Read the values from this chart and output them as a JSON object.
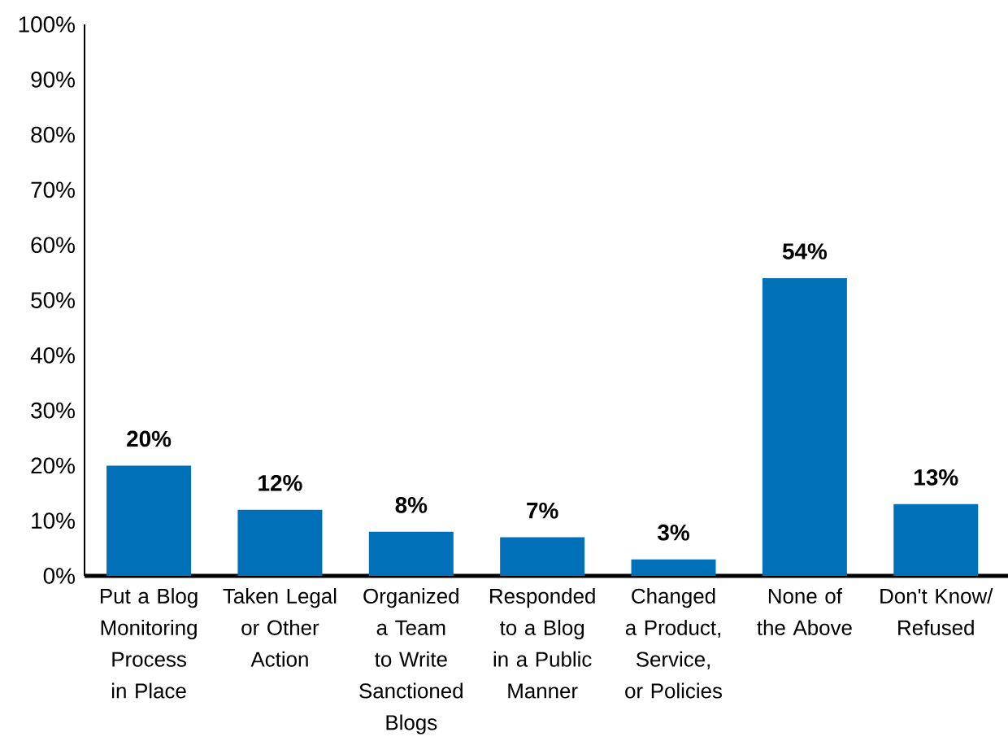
{
  "chart_data": {
    "type": "bar",
    "categories": [
      "Put a Blog Monitoring Process in Place",
      "Taken Legal or Other Action",
      "Organized a Team to Write Sanctioned Blogs",
      "Responded to a Blog in a Public Manner",
      "Changed a Product, Service, or Policies",
      "None of the Above",
      "Don't Know/ Refused"
    ],
    "values": [
      20,
      12,
      8,
      7,
      3,
      54,
      13
    ],
    "value_labels": [
      "20%",
      "12%",
      "8%",
      "7%",
      "3%",
      "54%",
      "13%"
    ],
    "color": "#0070b8",
    "ylim": [
      0,
      100
    ],
    "yticks": [
      {
        "value": 0,
        "label": "0%"
      },
      {
        "value": 10,
        "label": "10%"
      },
      {
        "value": 20,
        "label": "20%"
      },
      {
        "value": 30,
        "label": "30%"
      },
      {
        "value": 40,
        "label": "40%"
      },
      {
        "value": 50,
        "label": "50%"
      },
      {
        "value": 60,
        "label": "60%"
      },
      {
        "value": 70,
        "label": "70%"
      },
      {
        "value": 80,
        "label": "80%"
      },
      {
        "value": 90,
        "label": "90%"
      },
      {
        "value": 100,
        "label": "100%"
      }
    ],
    "grid": false
  }
}
